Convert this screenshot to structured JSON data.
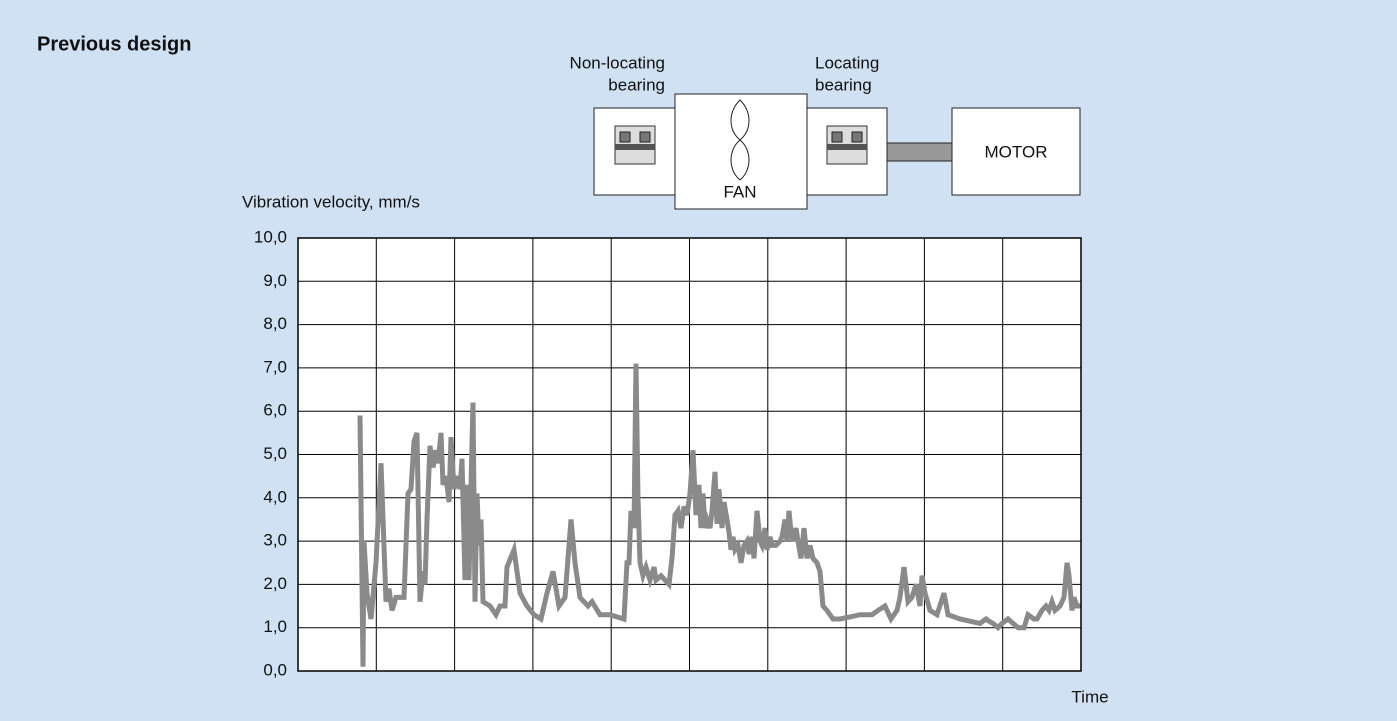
{
  "title": "Previous design",
  "diagram": {
    "left_bearing": [
      "Non-locating",
      "bearing"
    ],
    "fan": "FAN",
    "right_bearing": [
      "Locating",
      "bearing"
    ],
    "motor": "MOTOR"
  },
  "chart_data": {
    "type": "line",
    "y_label": "Vibration velocity, mm/s",
    "x_label": "Time",
    "xlim": [
      0,
      783
    ],
    "ylim": [
      0,
      10
    ],
    "yticks": [
      {
        "value": 0,
        "label": "0,0"
      },
      {
        "value": 1,
        "label": "1,0"
      },
      {
        "value": 2,
        "label": "2,0"
      },
      {
        "value": 3,
        "label": "3,0"
      },
      {
        "value": 4,
        "label": "4,0"
      },
      {
        "value": 5,
        "label": "5,0"
      },
      {
        "value": 6,
        "label": "6,0"
      },
      {
        "value": 7,
        "label": "7,0"
      },
      {
        "value": 8,
        "label": "8,0"
      },
      {
        "value": 9,
        "label": "9,0"
      },
      {
        "value": 10,
        "label": "10,0"
      }
    ],
    "grid": true,
    "color": "#8a8a8a",
    "x": [
      62,
      65,
      66,
      69,
      73,
      78,
      83,
      88,
      91,
      94,
      98,
      106,
      110,
      113,
      116,
      119,
      122,
      125,
      127,
      129,
      132,
      135,
      138,
      140,
      143,
      145,
      148,
      151,
      153,
      156,
      159,
      162,
      164,
      167,
      169,
      171,
      173,
      175,
      177,
      179,
      181,
      183,
      185,
      192,
      198,
      202,
      207,
      209,
      216,
      222,
      229,
      236,
      243,
      249,
      255,
      261,
      267,
      273,
      277,
      282,
      290,
      294,
      302,
      312,
      326,
      329,
      331,
      333,
      336,
      338,
      340,
      342,
      345,
      348,
      352,
      356,
      358,
      363,
      367,
      371,
      374,
      377,
      380,
      383,
      386,
      389,
      392,
      395,
      398,
      401,
      403,
      405,
      407,
      409,
      412,
      414,
      417,
      419,
      421,
      424,
      426,
      429,
      431,
      433,
      435,
      437,
      440,
      443,
      446,
      449,
      451,
      454,
      456,
      459,
      462,
      464,
      467,
      469,
      472,
      474,
      478,
      482,
      484,
      487,
      489,
      491,
      493,
      495,
      498,
      500,
      503,
      506,
      509,
      512,
      515,
      519,
      522,
      525,
      529,
      535,
      542,
      552,
      562,
      574,
      580,
      587,
      593,
      599,
      602,
      606,
      610,
      614,
      618,
      622,
      624,
      627,
      632,
      639,
      646,
      650,
      662,
      672,
      682,
      688,
      691,
      695,
      700,
      704,
      710,
      715,
      720,
      726,
      730,
      736,
      739,
      744,
      748,
      751,
      754,
      757,
      762,
      766,
      769,
      771,
      774,
      776,
      779,
      783
    ],
    "values": [
      5.9,
      0.1,
      3.0,
      1.8,
      1.2,
      2.5,
      4.8,
      1.6,
      1.9,
      1.4,
      1.7,
      1.7,
      4.1,
      4.2,
      5.3,
      5.5,
      1.6,
      2.3,
      2.0,
      3.5,
      5.2,
      4.7,
      5.1,
      4.8,
      5.5,
      4.3,
      4.5,
      3.9,
      5.4,
      4.2,
      4.5,
      4.2,
      4.9,
      2.1,
      4.3,
      2.1,
      4.3,
      6.2,
      1.6,
      4.1,
      2.9,
      3.5,
      1.6,
      1.5,
      1.3,
      1.5,
      1.5,
      2.4,
      2.8,
      1.8,
      1.5,
      1.3,
      1.2,
      1.8,
      2.3,
      1.5,
      1.7,
      3.5,
      2.5,
      1.7,
      1.5,
      1.6,
      1.3,
      1.3,
      1.2,
      2.5,
      2.5,
      3.7,
      3.3,
      7.1,
      4.0,
      2.5,
      2.2,
      2.4,
      2.1,
      2.4,
      2.1,
      2.2,
      2.1,
      2.0,
      2.6,
      3.6,
      3.7,
      3.3,
      3.8,
      3.6,
      4.1,
      5.1,
      3.6,
      4.3,
      3.3,
      4.1,
      3.3,
      3.5,
      3.3,
      3.7,
      4.6,
      3.4,
      4.2,
      3.3,
      3.9,
      3.5,
      3.2,
      2.8,
      3.1,
      2.8,
      2.9,
      2.5,
      2.9,
      3.0,
      2.7,
      3.1,
      2.6,
      3.7,
      3.0,
      2.9,
      3.3,
      2.8,
      3.1,
      2.9,
      2.9,
      3.0,
      3.1,
      3.5,
      3.0,
      3.7,
      3.2,
      3.0,
      3.3,
      3.0,
      2.6,
      3.3,
      2.6,
      2.9,
      2.6,
      2.5,
      2.3,
      1.5,
      1.4,
      1.2,
      1.2,
      1.25,
      1.3,
      1.3,
      1.4,
      1.5,
      1.2,
      1.4,
      1.7,
      2.4,
      1.6,
      1.7,
      2.0,
      1.5,
      2.2,
      1.8,
      1.4,
      1.3,
      1.8,
      1.3,
      1.2,
      1.15,
      1.1,
      1.2,
      1.15,
      1.1,
      1.0,
      1.1,
      1.2,
      1.1,
      1.0,
      1.0,
      1.3,
      1.2,
      1.2,
      1.4,
      1.5,
      1.4,
      1.6,
      1.4,
      1.5,
      1.7,
      2.5,
      2.2,
      1.4,
      1.7,
      1.5,
      1.5
    ]
  }
}
